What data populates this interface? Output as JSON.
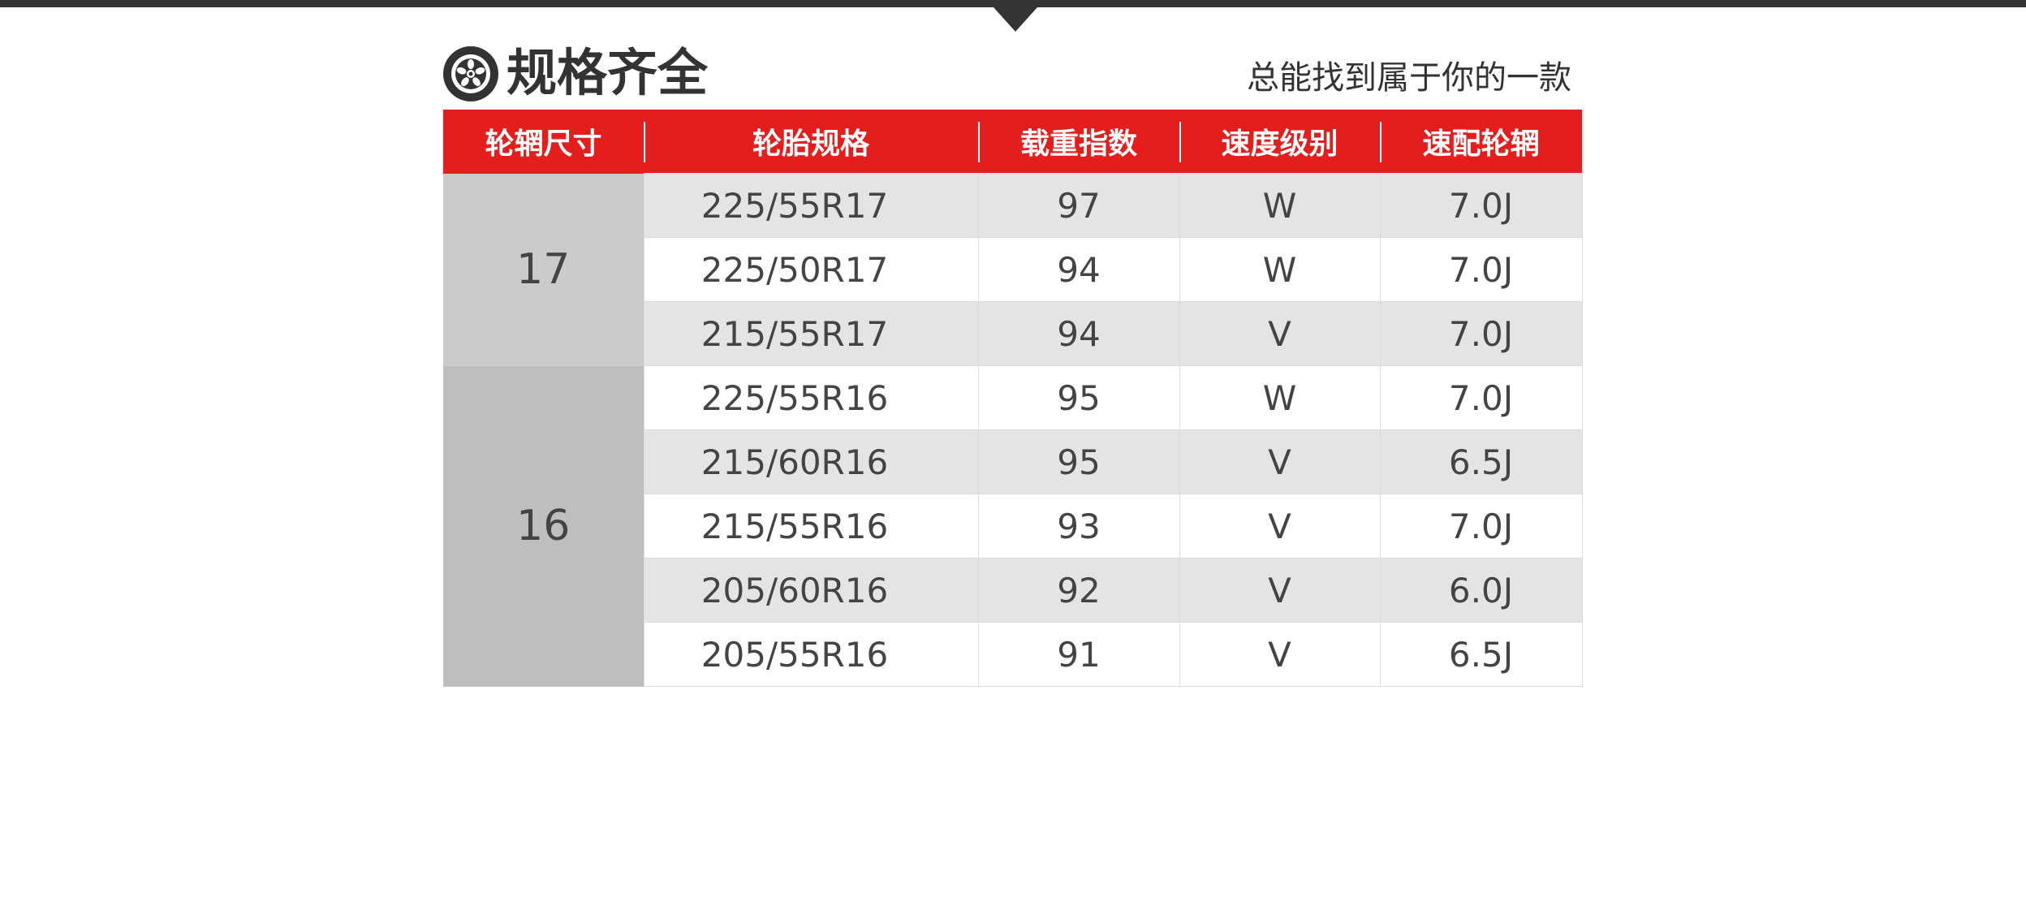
{
  "header": {
    "title": "规格齐全",
    "subtitle": "总能找到属于你的一款",
    "icon": "wheel-icon"
  },
  "colors": {
    "accent": "#e31e1c",
    "dark": "#333333"
  },
  "table": {
    "columns": [
      "轮辋尺寸",
      "轮胎规格",
      "载重指数",
      "速度级别",
      "速配轮辋"
    ],
    "groups": [
      {
        "rim": "17",
        "rows": [
          {
            "spec": "225/55R17",
            "load": "97",
            "speed": "W",
            "wheel": "7.0J"
          },
          {
            "spec": "225/50R17",
            "load": "94",
            "speed": "W",
            "wheel": "7.0J"
          },
          {
            "spec": "215/55R17",
            "load": "94",
            "speed": "V",
            "wheel": "7.0J"
          }
        ]
      },
      {
        "rim": "16",
        "rows": [
          {
            "spec": "225/55R16",
            "load": "95",
            "speed": "W",
            "wheel": "7.0J"
          },
          {
            "spec": "215/60R16",
            "load": "95",
            "speed": "V",
            "wheel": "6.5J"
          },
          {
            "spec": "215/55R16",
            "load": "93",
            "speed": "V",
            "wheel": "7.0J"
          },
          {
            "spec": "205/60R16",
            "load": "92",
            "speed": "V",
            "wheel": "6.0J"
          },
          {
            "spec": "205/55R16",
            "load": "91",
            "speed": "V",
            "wheel": "6.5J"
          }
        ]
      }
    ]
  }
}
